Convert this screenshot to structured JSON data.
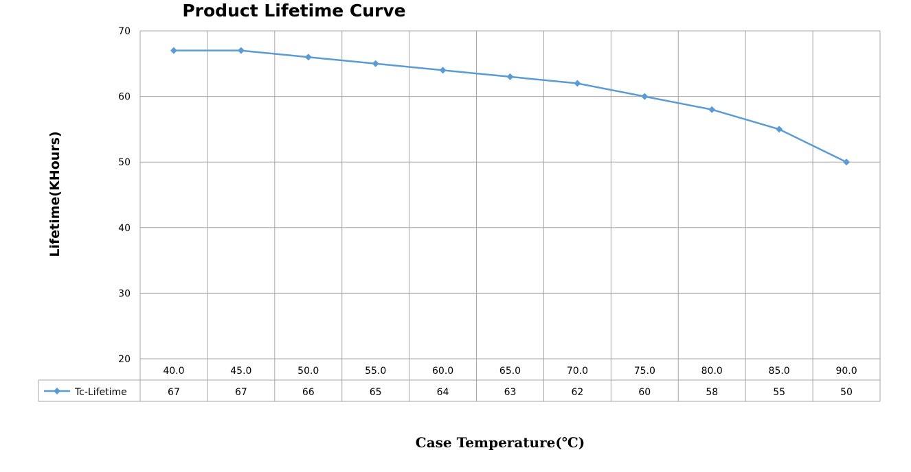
{
  "chart_data": {
    "type": "line",
    "title": "Product Lifetime Curve",
    "xlabel": "Case Temperature(℃)",
    "ylabel": "Lifetime(KHours)",
    "categories": [
      "40.0",
      "45.0",
      "50.0",
      "55.0",
      "60.0",
      "65.0",
      "70.0",
      "75.0",
      "80.0",
      "85.0",
      "90.0"
    ],
    "series": [
      {
        "name": "Tc-Lifetime",
        "values": [
          67,
          67,
          66,
          65,
          64,
          63,
          62,
          60,
          58,
          55,
          50
        ],
        "color": "#5b9bd5"
      }
    ],
    "ylim": [
      20,
      70
    ],
    "yticks": [
      20,
      30,
      40,
      50,
      60,
      70
    ],
    "grid": true,
    "legend": "data-table"
  }
}
